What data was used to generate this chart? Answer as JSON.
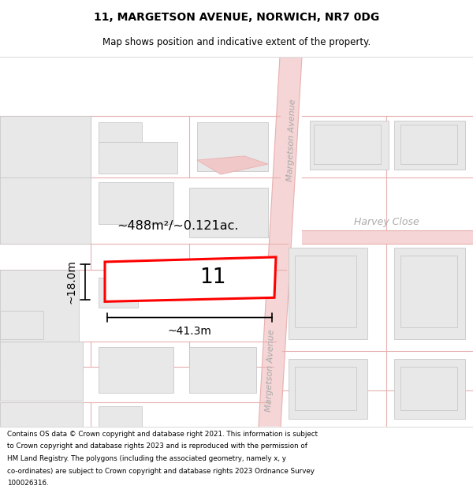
{
  "title": "11, MARGETSON AVENUE, NORWICH, NR7 0DG",
  "subtitle": "Map shows position and indicative extent of the property.",
  "footer_text": "Contains OS data © Crown copyright and database right 2021. This information is subject to Crown copyright and database rights 2023 and is reproduced with the permission of HM Land Registry. The polygons (including the associated geometry, namely x, y co-ordinates) are subject to Crown copyright and database rights 2023 Ordnance Survey 100026316.",
  "dim_annotation": "~488m²/~0.121ac.",
  "width_annotation": "~41.3m",
  "height_annotation": "~18.0m",
  "label": "11",
  "street_name_top": "Margetson Avenue",
  "street_name_bottom": "Margetson Avenue",
  "street_name_right": "Harvey Close",
  "map_bg": "#f7f2f2",
  "road_fill": "#f5d5d5",
  "road_line": "#e8b0b0",
  "building_fill": "#e8e8e8",
  "building_edge": "#c8c8c8",
  "highlight_edge": "#ff0000",
  "highlight_fill": "#ffffff",
  "title_fontsize": 10,
  "subtitle_fontsize": 8.5
}
